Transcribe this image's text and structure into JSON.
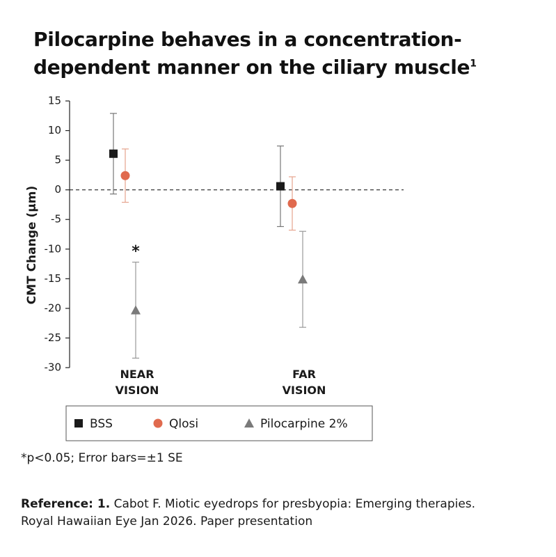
{
  "chart_data": {
    "type": "errorbar",
    "title_lines": [
      "Pilocarpine behaves in a concentration-",
      "dependent manner on the ciliary muscle"
    ],
    "title_superscript": "1",
    "y_label": "CMT Change (µm)",
    "categories": [
      "NEAR VISION",
      "FAR VISION"
    ],
    "series": [
      {
        "name": "BSS",
        "marker": "square",
        "color": "#1a1a1a",
        "error_color": "#777777",
        "values": [
          6.1,
          0.6
        ],
        "errors": [
          6.8,
          6.8
        ]
      },
      {
        "name": "Qlosi",
        "marker": "circle",
        "color": "#e06a4e",
        "error_color": "#e6a48e",
        "values": [
          2.4,
          -2.3
        ],
        "errors": [
          4.5,
          4.5
        ]
      },
      {
        "name": "Pilocarpine 2%",
        "marker": "triangle",
        "color": "#7a7a7a",
        "error_color": "#999999",
        "values": [
          -20.3,
          -15.1
        ],
        "errors": [
          8.1,
          8.1
        ]
      }
    ],
    "ylim": [
      -30,
      15
    ],
    "yticks": [
      15,
      10,
      5,
      0,
      -5,
      -10,
      -15,
      -20,
      -25,
      -30
    ],
    "zero_line": "dashed",
    "annotations": [
      {
        "text": "*"
      }
    ],
    "footnote": "*p<0.05; Error bars=±1 SE",
    "reference_label": "Reference: 1.",
    "reference_text": "Cabot F. Miotic eyedrops for presbyopia: Emerging therapies. Royal Hawaiian Eye Jan 2026. Paper presentation"
  }
}
